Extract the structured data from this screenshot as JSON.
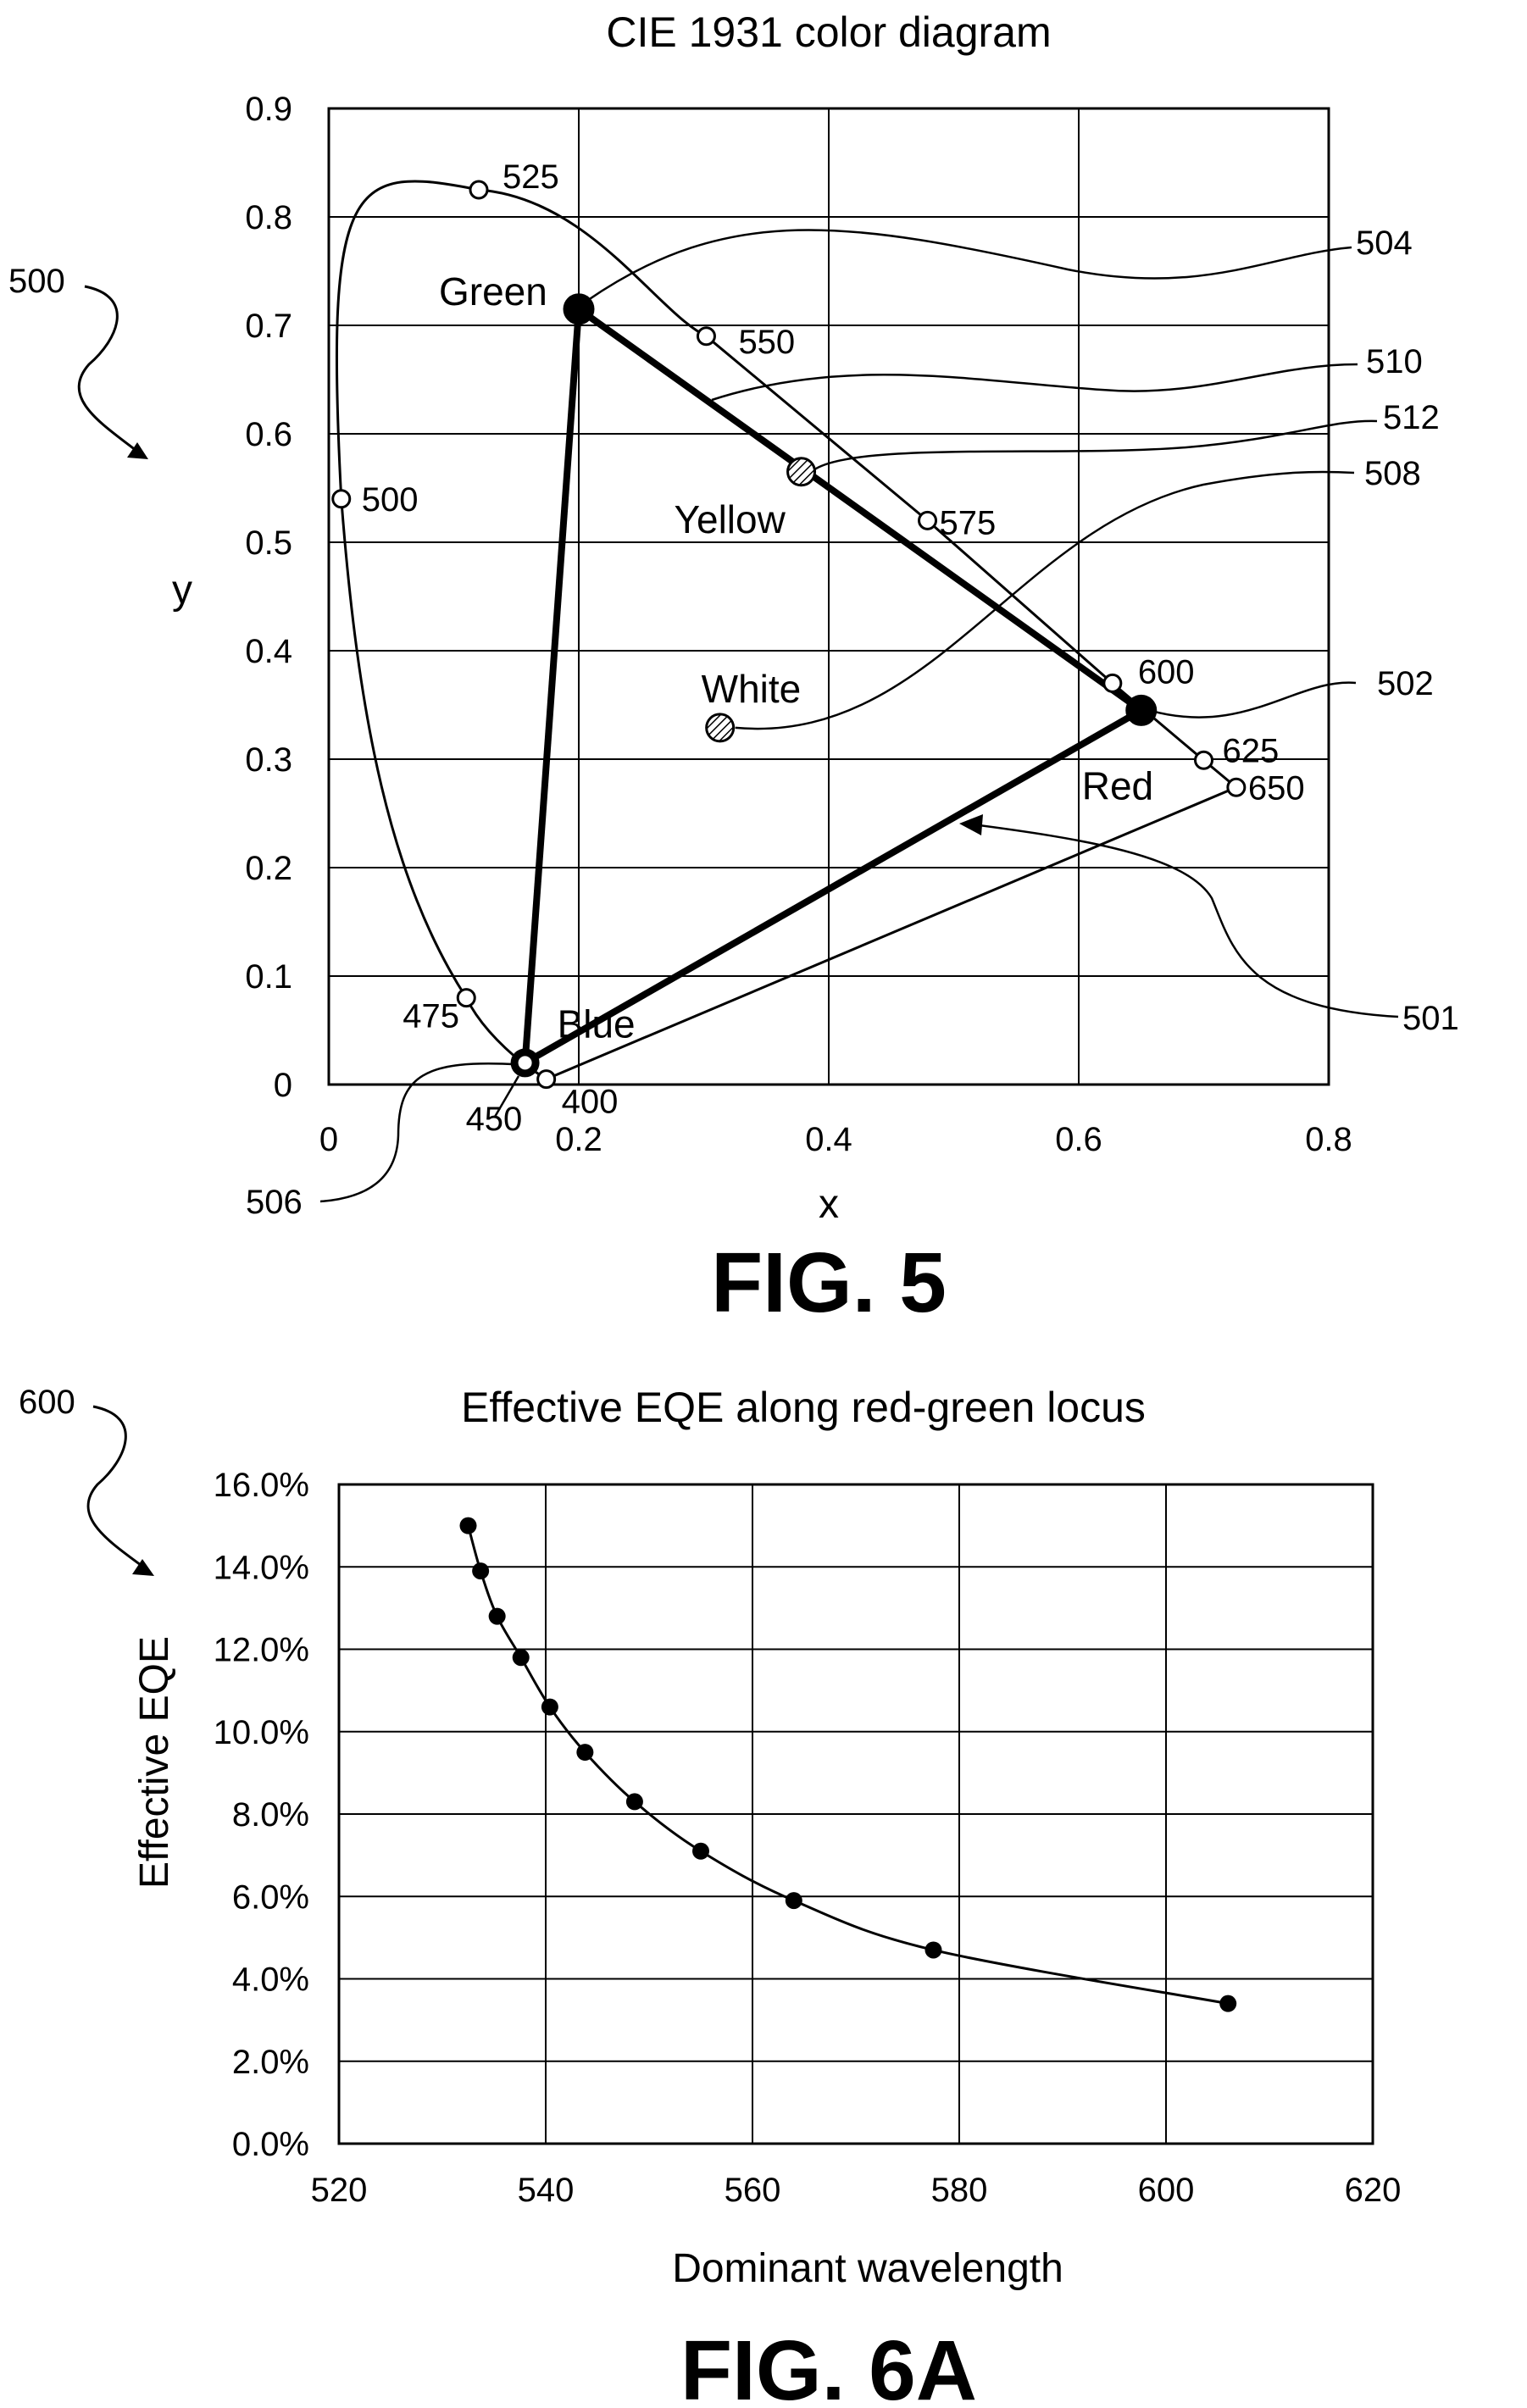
{
  "chart_data": [
    {
      "type": "scatter",
      "title": "CIE 1931 color diagram",
      "xlabel": "x",
      "ylabel": "y",
      "xlim": [
        0,
        0.8
      ],
      "ylim": [
        0,
        0.9
      ],
      "x_ticks": [
        "0",
        "0.2",
        "0.4",
        "0.6",
        "0.8"
      ],
      "y_ticks": [
        "0",
        "0.1",
        "0.2",
        "0.3",
        "0.4",
        "0.5",
        "0.6",
        "0.7",
        "0.8",
        "0.9"
      ],
      "grid": true,
      "figure_label": "FIG. 5",
      "figure_ref": "500",
      "spectral_locus": [
        {
          "label": "400",
          "x": 0.174,
          "y": 0.005
        },
        {
          "label": "450",
          "x": 0.157,
          "y": 0.018
        },
        {
          "label": "475",
          "x": 0.11,
          "y": 0.08
        },
        {
          "label": "500",
          "x": 0.01,
          "y": 0.54
        },
        {
          "label": "525",
          "x": 0.12,
          "y": 0.825
        },
        {
          "label": "550",
          "x": 0.302,
          "y": 0.69
        },
        {
          "label": "575",
          "x": 0.479,
          "y": 0.52
        },
        {
          "label": "600",
          "x": 0.627,
          "y": 0.37
        },
        {
          "label": "625",
          "x": 0.7,
          "y": 0.299
        },
        {
          "label": "650",
          "x": 0.726,
          "y": 0.274
        }
      ],
      "primaries": [
        {
          "name": "Red",
          "x": 0.65,
          "y": 0.345
        },
        {
          "name": "Green",
          "x": 0.2,
          "y": 0.715
        },
        {
          "name": "Blue",
          "x": 0.157,
          "y": 0.02
        }
      ],
      "points": [
        {
          "name": "Yellow",
          "x": 0.378,
          "y": 0.565
        },
        {
          "name": "White",
          "x": 0.313,
          "y": 0.329
        }
      ],
      "reference_numerals": [
        "501",
        "502",
        "504",
        "506",
        "508",
        "510",
        "512"
      ]
    },
    {
      "type": "line",
      "title": "Effective EQE along red-green locus",
      "xlabel": "Dominant wavelength",
      "ylabel": "Effective EQE",
      "xlim": [
        520,
        620
      ],
      "ylim": [
        0,
        16
      ],
      "x_ticks": [
        "520",
        "540",
        "560",
        "580",
        "600",
        "620"
      ],
      "y_ticks": [
        "0.0%",
        "2.0%",
        "4.0%",
        "6.0%",
        "8.0%",
        "10.0%",
        "12.0%",
        "14.0%",
        "16.0%"
      ],
      "grid": true,
      "figure_label": "FIG. 6A",
      "figure_ref": "600",
      "x": [
        532.5,
        533.7,
        535.3,
        537.6,
        540.4,
        543.8,
        548.6,
        555,
        564,
        577.5,
        606
      ],
      "y": [
        15.0,
        13.9,
        12.8,
        11.8,
        10.6,
        9.5,
        8.3,
        7.1,
        5.9,
        4.7,
        3.4
      ],
      "unit": "%"
    }
  ]
}
